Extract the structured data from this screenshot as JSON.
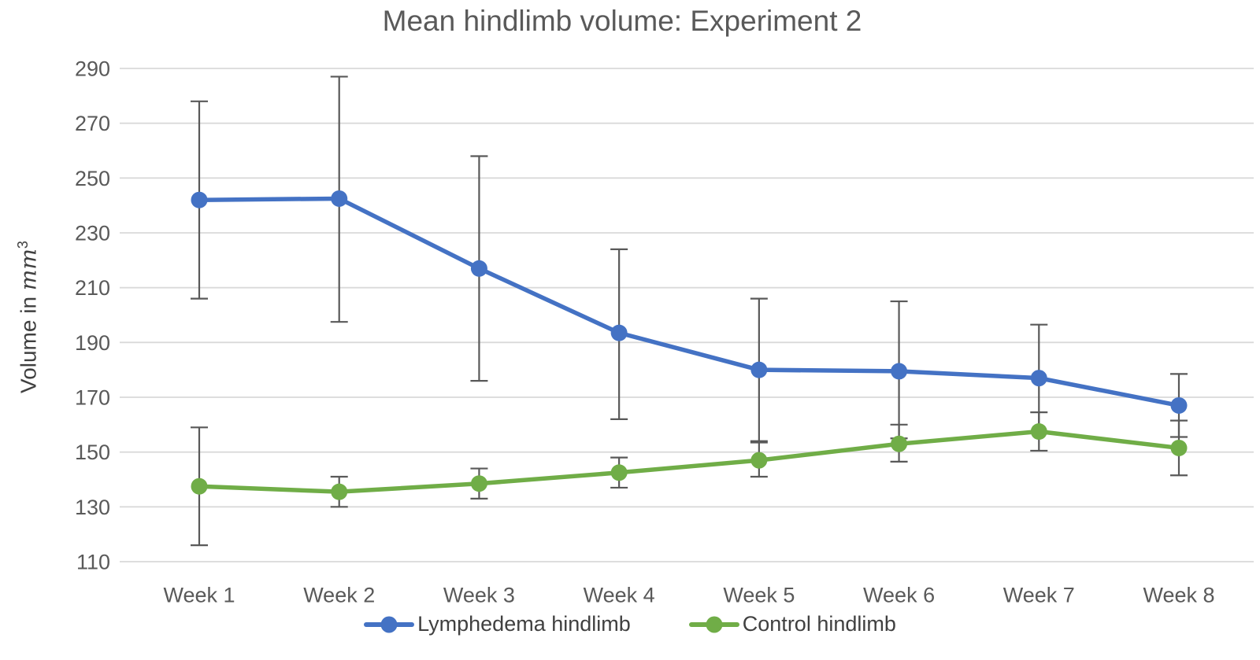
{
  "title": "Mean hindlimb volume: Experiment 2",
  "y_axis": {
    "title_prefix": "Volume in ",
    "title_unit": "mm",
    "title_exponent": "3",
    "tick_labels": [
      "290",
      "270",
      "250",
      "230",
      "210",
      "190",
      "170",
      "150",
      "130",
      "110"
    ]
  },
  "x_axis": {
    "labels": [
      "Week 1",
      "Week 2",
      "Week 3",
      "Week 4",
      "Week 5",
      "Week 6",
      "Week 7",
      "Week 8"
    ]
  },
  "legend": {
    "items": [
      {
        "label": "Lymphedema hindlimb",
        "color": "#4472C4"
      },
      {
        "label": "Control hindlimb",
        "color": "#70AD47"
      }
    ]
  },
  "colors": {
    "blue_series": "#4472C4",
    "green_series": "#70AD47",
    "gridline": "#D9D9D9",
    "error_bar": "#595959",
    "text": "#595959"
  },
  "chart_data": {
    "type": "line",
    "title": "Mean hindlimb volume: Experiment 2",
    "xlabel": "",
    "ylabel": "Volume in mm^3",
    "ylim": [
      110,
      290
    ],
    "ytick_step": 20,
    "grid": true,
    "legend_position": "bottom",
    "categories": [
      "Week 1",
      "Week 2",
      "Week 3",
      "Week 4",
      "Week 5",
      "Week 6",
      "Week 7",
      "Week 8"
    ],
    "series": [
      {
        "name": "Lymphedema hindlimb",
        "color": "#4472C4",
        "values": [
          242,
          242.5,
          217,
          193.5,
          180,
          179.5,
          177,
          167
        ],
        "error_up": [
          36,
          44.5,
          41,
          30.5,
          26,
          25.5,
          19.5,
          11.5
        ],
        "error_down": [
          36,
          45,
          41,
          31.5,
          26,
          24.5,
          19.5,
          11.5
        ]
      },
      {
        "name": "Control hindlimb",
        "color": "#70AD47",
        "values": [
          137.5,
          135.5,
          138.5,
          142.5,
          147,
          153,
          157.5,
          151.5
        ],
        "error_up": [
          21.5,
          5.5,
          5.5,
          5.5,
          6.5,
          7,
          7,
          10
        ],
        "error_down": [
          21.5,
          5.5,
          5.5,
          5.5,
          6,
          6.5,
          7,
          10
        ]
      }
    ]
  }
}
